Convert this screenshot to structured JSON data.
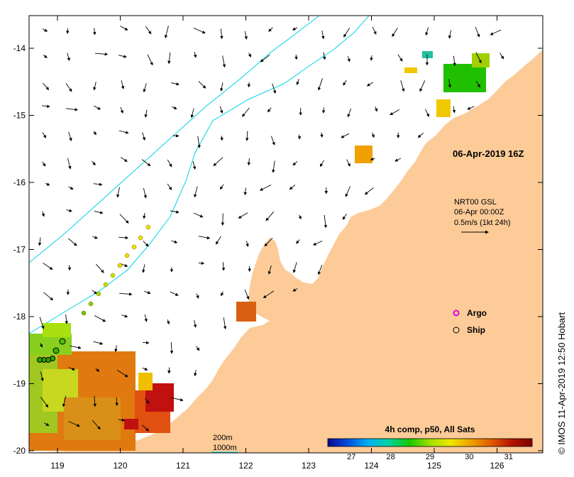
{
  "map": {
    "date_label": "06-Apr-2019 16Z",
    "current_legend": {
      "line1": "NRT00 GSL",
      "line2": "06-Apr 00:00Z",
      "line3": "0.5m/s (1kt 24h)"
    },
    "markers": {
      "argo_label": "Argo",
      "ship_label": "Ship"
    },
    "isobaths": {
      "label_200": "200m",
      "label_1000": "1000m",
      "color": "#00d4e6"
    },
    "colorbar": {
      "title": "4h comp, p50, All Sats",
      "ticks": [
        "27",
        "28",
        "29",
        "30",
        "31"
      ],
      "min": 26.4,
      "max": 31.6,
      "colors": [
        "#0a0a8c",
        "#0050e0",
        "#00b4f0",
        "#00d2a0",
        "#18c800",
        "#a0e000",
        "#f0e800",
        "#f0a000",
        "#e05a00",
        "#b41400",
        "#7a0000"
      ]
    },
    "credit": "© IMOS 11-Apr-2019 12:50 Hobart",
    "lon_ticks": [
      "119",
      "120",
      "121",
      "122",
      "123",
      "124",
      "125",
      "126"
    ],
    "lat_ticks": [
      "-14",
      "-15",
      "-16",
      "-17",
      "-18",
      "-19",
      "-20"
    ],
    "land_color": "#fccb98"
  }
}
